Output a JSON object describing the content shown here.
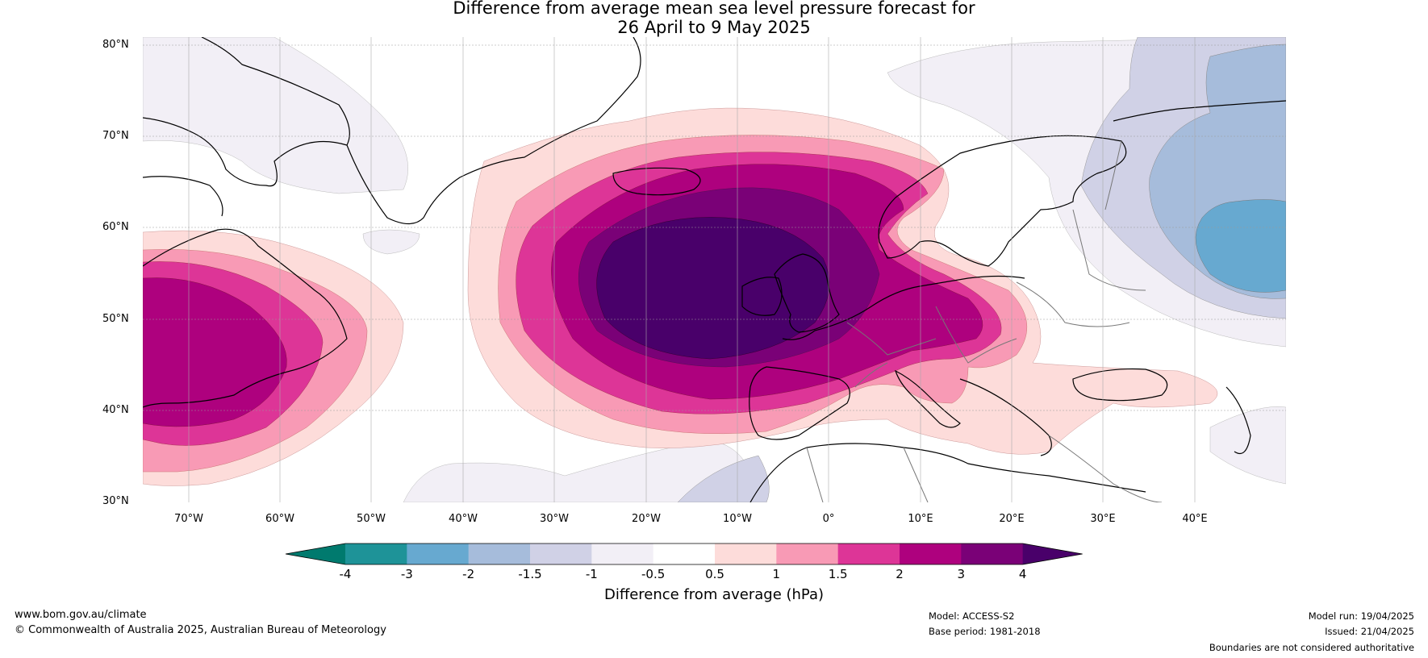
{
  "title_line1": "Difference from average mean sea level pressure forecast for",
  "title_line2": "26 April to 9 May 2025",
  "lat_labels": [
    "80°N",
    "70°N",
    "60°N",
    "50°N",
    "40°N",
    "30°N"
  ],
  "lon_labels": [
    "70°W",
    "60°W",
    "50°W",
    "40°W",
    "30°W",
    "20°W",
    "10°W",
    "0°",
    "10°E",
    "20°E",
    "30°E",
    "40°E"
  ],
  "colorbar": {
    "title": "Difference from average (hPa)",
    "ticks": [
      "-4",
      "-3",
      "-2",
      "-1.5",
      "-1",
      "-0.5",
      "0.5",
      "1",
      "1.5",
      "2",
      "3",
      "4"
    ],
    "colors": [
      "#007a6e",
      "#1e9398",
      "#67a9d0",
      "#a6bcdb",
      "#d0d1e6",
      "#f2eff6",
      "#ffffff",
      "#fddcda",
      "#f89ab5",
      "#dd3597",
      "#ae017e",
      "#7a0177",
      "#49006a"
    ]
  },
  "footer": {
    "website": "www.bom.gov.au/climate",
    "copyright": "© Commonwealth of Australia 2025, Australian Bureau of Meteorology",
    "model": "Model: ACCESS-S2",
    "base_period": "Base period: 1981-2018",
    "model_run": "Model run: 19/04/2025",
    "issued": "Issued: 21/04/2025",
    "disclaimer": "Boundaries are not considered authoritative"
  }
}
